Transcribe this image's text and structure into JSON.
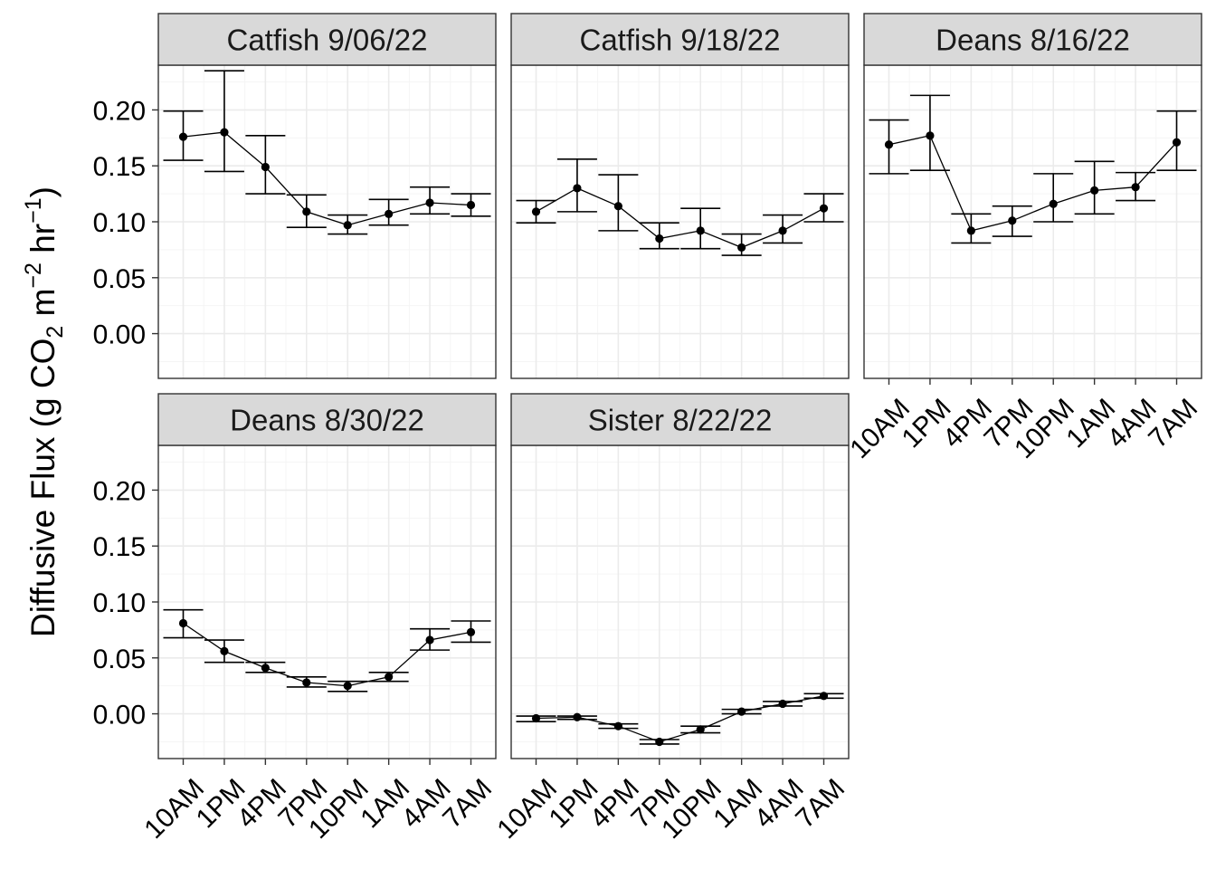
{
  "chart_data": {
    "type": "line",
    "ylabel_parts": {
      "before": "Diffusive Flux (g CO",
      "sub": "2",
      "mid1": " m",
      "sup1": "−2",
      "mid2": " hr",
      "sup2": "−1",
      "after": ")"
    },
    "xlabel": "",
    "categories": [
      "10AM",
      "1PM",
      "4PM",
      "7PM",
      "10PM",
      "1AM",
      "4AM",
      "7AM"
    ],
    "ylim": [
      -0.04,
      0.24
    ],
    "y_ticks": [
      0.0,
      0.05,
      0.1,
      0.15,
      0.2
    ],
    "y_tick_labels": [
      "0.00",
      "0.05",
      "0.10",
      "0.15",
      "0.20"
    ],
    "grid": true,
    "colors": {
      "strip_fill": "#d9d9d9",
      "panel_border": "#333333",
      "grid_major": "#ebebeb",
      "grid_minor": "#f5f5f5",
      "series": "#000000"
    },
    "panels": [
      {
        "title": "Catfish 9/06/22",
        "values": [
          0.176,
          0.18,
          0.149,
          0.109,
          0.097,
          0.107,
          0.117,
          0.115
        ],
        "lower": [
          0.155,
          0.145,
          0.125,
          0.095,
          0.089,
          0.097,
          0.107,
          0.105
        ],
        "upper": [
          0.199,
          0.235,
          0.177,
          0.124,
          0.106,
          0.12,
          0.131,
          0.125
        ]
      },
      {
        "title": "Catfish 9/18/22",
        "values": [
          0.109,
          0.13,
          0.114,
          0.085,
          0.092,
          0.077,
          0.092,
          0.112
        ],
        "lower": [
          0.099,
          0.109,
          0.092,
          0.076,
          0.076,
          0.07,
          0.081,
          0.1
        ],
        "upper": [
          0.119,
          0.156,
          0.142,
          0.099,
          0.112,
          0.089,
          0.106,
          0.125
        ]
      },
      {
        "title": "Deans 8/16/22",
        "values": [
          0.169,
          0.177,
          0.092,
          0.101,
          0.116,
          0.128,
          0.131,
          0.171
        ],
        "lower": [
          0.143,
          0.146,
          0.081,
          0.087,
          0.1,
          0.107,
          0.119,
          0.146
        ],
        "upper": [
          0.191,
          0.213,
          0.107,
          0.114,
          0.143,
          0.154,
          0.144,
          0.199
        ]
      },
      {
        "title": "Deans 8/30/22",
        "values": [
          0.081,
          0.056,
          0.041,
          0.028,
          0.025,
          0.033,
          0.066,
          0.073
        ],
        "lower": [
          0.068,
          0.046,
          0.037,
          0.024,
          0.02,
          0.029,
          0.057,
          0.064
        ],
        "upper": [
          0.093,
          0.066,
          0.046,
          0.033,
          0.029,
          0.037,
          0.076,
          0.083
        ]
      },
      {
        "title": "Sister 8/22/22",
        "values": [
          -0.004,
          -0.003,
          -0.011,
          -0.025,
          -0.014,
          0.002,
          0.009,
          0.016
        ],
        "lower": [
          -0.007,
          -0.005,
          -0.013,
          -0.027,
          -0.017,
          0.0,
          0.007,
          0.014
        ],
        "upper": [
          -0.002,
          -0.002,
          -0.009,
          -0.023,
          -0.011,
          0.004,
          0.011,
          0.018
        ]
      }
    ]
  }
}
